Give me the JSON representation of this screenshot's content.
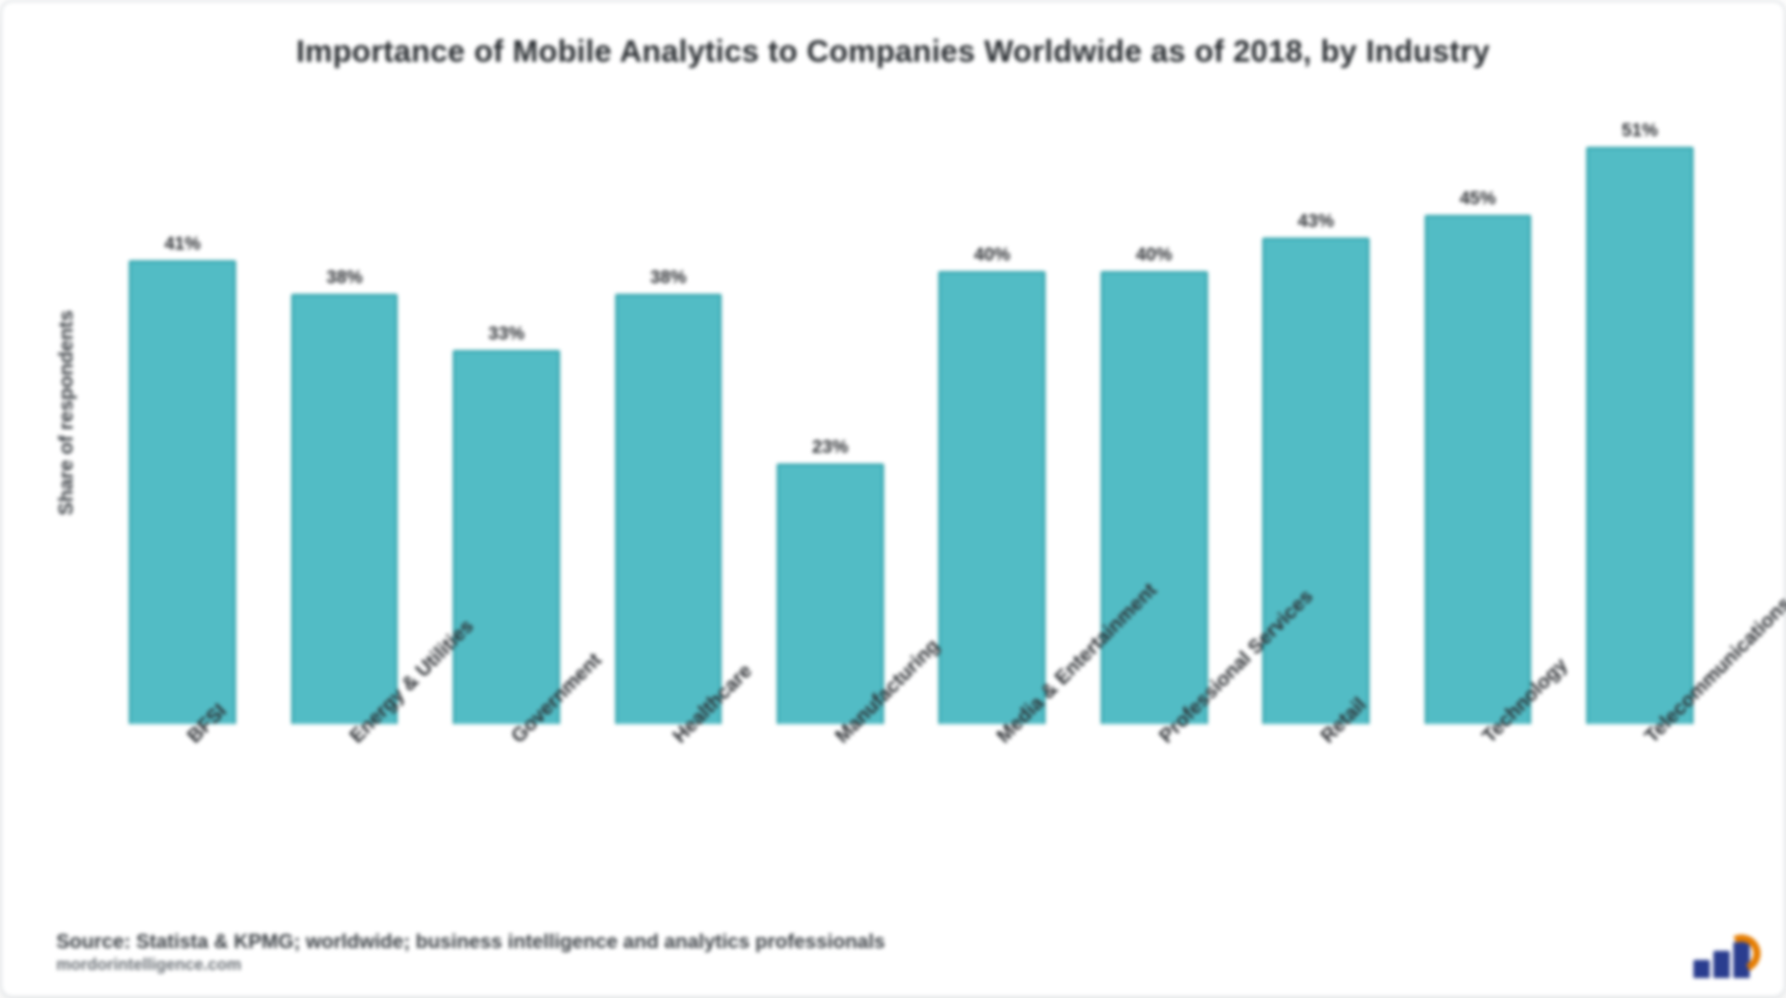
{
  "chart": {
    "type": "bar",
    "title": "Importance of Mobile Analytics to Companies Worldwide as of 2018, by Industry",
    "title_fontsize": 34,
    "ylabel": "Share of respondents",
    "ylabel_fontsize": 22,
    "categories": [
      "BFSI",
      "Energy & Utilities",
      "Government",
      "Healthcare",
      "Manufacturing",
      "Media & Entertainment",
      "Professional Services",
      "Retail",
      "Technology",
      "Telecommunications"
    ],
    "values": [
      41,
      38,
      33,
      38,
      23,
      40,
      40,
      43,
      45,
      51
    ],
    "value_suffix": "%",
    "value_fontsize": 20,
    "xlabel_fontsize": 22,
    "ylim_max": 55,
    "bar_color": "#52bcc5",
    "bar_border_color": "#1f9aa3",
    "background_color": "#ffffff",
    "card_border_color": "#dfe3e6"
  },
  "footer": {
    "line1": "Source: Statista & KPMG; worldwide; business intelligence and analytics professionals",
    "line2": "mordorintelligence.com",
    "fontsize1": 22,
    "fontsize2": 18
  },
  "logo": {
    "bar_color": "#2a3d8f",
    "arc_color": "#e57c00"
  }
}
